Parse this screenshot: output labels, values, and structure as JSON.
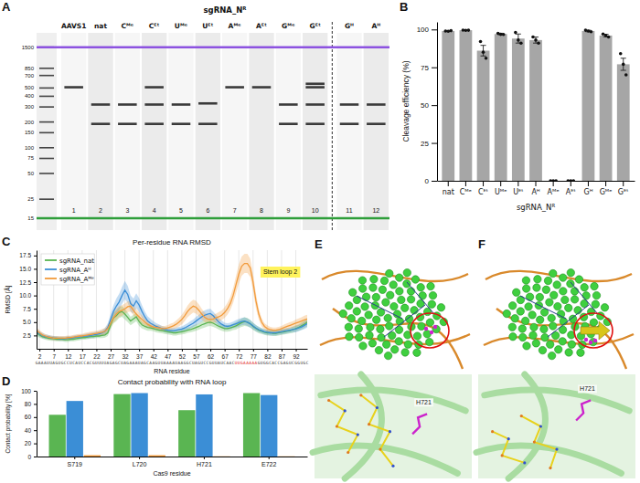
{
  "chart_data": [
    {
      "type": "gel",
      "panel": "A",
      "title": "sgRNA_Nᴿ",
      "log": "y",
      "ylim": [
        12,
        2000
      ],
      "ladder": [
        1500,
        850,
        700,
        500,
        400,
        300,
        200,
        150,
        100,
        75,
        50,
        25,
        15
      ],
      "upper_marker": 1500,
      "lower_marker": 15,
      "lane_groups": [
        [
          "AAVS1",
          "nat",
          "Cᴹᵉ",
          "Cᴱᵗ",
          "Uᴹᵉ",
          "Uᴱᵗ",
          "Aᴹᵉ",
          "Aᴱᵗ",
          "Gᴹᵉ",
          "Gᴱᵗ"
        ],
        [
          "Gᴴ",
          "Aᴴ"
        ]
      ],
      "lane_numbers": [
        1,
        2,
        3,
        4,
        5,
        6,
        7,
        8,
        9,
        10,
        11,
        12
      ],
      "bands": [
        [
          510
        ],
        [
          320,
          190
        ],
        [
          320,
          190
        ],
        [
          510,
          320,
          190
        ],
        [
          320,
          190
        ],
        [
          330,
          190
        ],
        [
          510
        ],
        [
          510
        ],
        [
          320,
          190
        ],
        [
          560,
          510,
          320,
          190
        ],
        [
          320,
          190
        ],
        [
          320,
          190
        ]
      ],
      "color": "#3a3a3a"
    },
    {
      "type": "bar",
      "panel": "B",
      "x_label": "sgRNA_Nᴿ",
      "y_label": "Cleavage efficiency (%)",
      "categories": [
        "nat",
        "Cᴹᵉ",
        "Cᴱᵗ",
        "Uᴹᵉ",
        "Uᴱᵗ",
        "Aᴴ",
        "Aᴹᵉ",
        "Aᴱᵗ",
        "Gᴴ",
        "Gᴹᵉ",
        "Gᴱᵗ"
      ],
      "values": [
        99,
        99.5,
        86,
        97,
        94,
        93,
        0,
        0,
        99,
        96,
        77
      ],
      "errors": [
        0.3,
        0.2,
        3.5,
        0.5,
        3,
        2,
        0,
        0,
        0.5,
        0.8,
        4
      ],
      "points": [
        [
          99,
          98.8,
          99.2
        ],
        [
          99.6,
          99.4,
          99.5
        ],
        [
          92,
          85,
          81
        ],
        [
          97.5,
          96.8,
          96.7
        ],
        [
          98,
          93,
          91
        ],
        [
          95,
          93,
          91
        ],
        [
          0,
          0,
          0
        ],
        [
          0,
          0,
          0
        ],
        [
          99.5,
          99,
          98.5
        ],
        [
          97,
          96,
          95
        ],
        [
          84,
          77,
          70
        ]
      ],
      "color": "#a6a6a6",
      "ylim": [
        0,
        105
      ],
      "yticks": [
        0,
        25,
        50,
        75,
        100
      ]
    },
    {
      "type": "line",
      "panel": "C",
      "title": "Per-residue RNA RMSD",
      "x_label": "RNA residue",
      "y_label": "RMSD [Å]",
      "x": [
        1,
        2,
        3,
        4,
        5,
        6,
        7,
        8,
        9,
        10,
        11,
        12,
        13,
        14,
        15,
        16,
        17,
        18,
        19,
        20,
        21,
        22,
        23,
        24,
        25,
        26,
        27,
        28,
        29,
        30,
        31,
        32,
        33,
        34,
        35,
        36,
        37,
        38,
        39,
        40,
        41,
        42,
        43,
        44,
        45,
        46,
        47,
        48,
        49,
        50,
        51,
        52,
        53,
        54,
        55,
        56,
        57,
        58,
        59,
        60,
        61,
        62,
        63,
        64,
        65,
        66,
        67,
        68,
        69,
        70,
        71,
        72,
        73,
        74,
        75,
        76,
        77,
        78,
        79,
        80,
        81,
        82,
        83,
        84,
        85,
        86,
        87,
        88,
        89,
        90,
        91,
        92,
        93,
        94,
        95,
        96
      ],
      "xlim": [
        1,
        96
      ],
      "xticks": [
        2,
        7,
        12,
        17,
        22,
        27,
        32,
        37,
        42,
        47,
        52,
        57,
        62,
        67,
        72,
        77,
        82,
        87,
        92
      ],
      "ylim": [
        0,
        18.5
      ],
      "yticks": [
        2.5,
        {
          "value": 5,
          "label": "5.0"
        },
        7.5,
        {
          "value": 10,
          "label": "10.0"
        },
        12.5,
        {
          "value": 15,
          "label": "15.0"
        },
        17.5
      ],
      "grid": true,
      "legend": "upper left",
      "annotation": "Stem loop 2",
      "sequence": "GAAAUUAGUGCCUCAUCCACGUUUUAGAGCUAGAAAUAGCAAGUUAAAAUAAGGCUAGUCCGUUAUCAACUUGAAAAAGUGGCACCGAGUCGGUGC",
      "highlight": [
        71,
        78
      ],
      "series": [
        {
          "name": "sgRNA_nat",
          "color": "#5ab552",
          "values": [
            3.0,
            2.6,
            2.3,
            2.1,
            2.0,
            1.9,
            1.9,
            1.8,
            1.8,
            1.8,
            1.7,
            1.7,
            1.8,
            1.8,
            1.9,
            2.0,
            2.1,
            2.1,
            2.2,
            2.3,
            2.3,
            2.4,
            2.4,
            2.5,
            2.6,
            3.0,
            4.5,
            5.8,
            6.2,
            6.8,
            7.0,
            6.5,
            5.9,
            5.2,
            5.6,
            6.0,
            5.1,
            4.5,
            4.2,
            4.0,
            3.9,
            3.8,
            3.6,
            3.5,
            3.4,
            3.3,
            3.2,
            3.1,
            3.0,
            3.0,
            3.1,
            3.2,
            3.3,
            3.5,
            3.6,
            3.8,
            4.0,
            4.2,
            4.5,
            4.7,
            4.9,
            5.0,
            4.8,
            4.5,
            4.2,
            4.0,
            3.8,
            3.8,
            3.9,
            4.1,
            4.3,
            4.6,
            4.9,
            5.1,
            5.0,
            4.7,
            4.2,
            3.8,
            3.5,
            3.3,
            3.1,
            3.0,
            3.0,
            2.9,
            2.9,
            3.0,
            3.1,
            3.2,
            3.3,
            3.4,
            3.6,
            3.8,
            4.0,
            4.3,
            4.6,
            5.0
          ],
          "std": [
            0.6,
            0.5,
            0.4,
            0.4,
            0.4,
            0.4,
            0.4,
            0.4,
            0.4,
            0.4,
            0.4,
            0.4,
            0.4,
            0.4,
            0.4,
            0.4,
            0.4,
            0.4,
            0.4,
            0.4,
            0.4,
            0.4,
            0.4,
            0.5,
            0.5,
            0.6,
            0.8,
            1.0,
            1.0,
            1.0,
            1.0,
            1.0,
            0.9,
            0.8,
            0.8,
            0.8,
            0.8,
            0.7,
            0.6,
            0.6,
            0.5,
            0.5,
            0.5,
            0.5,
            0.5,
            0.5,
            0.5,
            0.5,
            0.5,
            0.5,
            0.5,
            0.5,
            0.5,
            0.5,
            0.5,
            0.6,
            0.6,
            0.6,
            0.7,
            0.7,
            0.7,
            0.7,
            0.7,
            0.6,
            0.6,
            0.6,
            0.6,
            0.6,
            0.6,
            0.6,
            0.7,
            0.7,
            0.8,
            0.8,
            0.8,
            0.7,
            0.7,
            0.6,
            0.6,
            0.5,
            0.5,
            0.5,
            0.5,
            0.5,
            0.5,
            0.5,
            0.5,
            0.5,
            0.5,
            0.5,
            0.6,
            0.6,
            0.6,
            0.7,
            0.7,
            0.8
          ]
        },
        {
          "name": "sgRNA_Aᴴ",
          "color": "#3b8ed6",
          "values": [
            3.2,
            2.8,
            2.5,
            2.3,
            2.2,
            2.1,
            2.0,
            2.0,
            1.9,
            1.9,
            1.9,
            2.0,
            2.0,
            2.1,
            2.2,
            2.2,
            2.3,
            2.4,
            2.4,
            2.5,
            2.6,
            2.7,
            2.8,
            3.0,
            3.3,
            4.0,
            5.5,
            7.0,
            8.0,
            8.8,
            10.0,
            11.0,
            10.2,
            8.5,
            8.0,
            9.0,
            8.2,
            7.0,
            6.0,
            5.2,
            4.8,
            4.5,
            4.2,
            4.0,
            3.8,
            3.6,
            3.5,
            3.4,
            3.4,
            3.5,
            3.6,
            3.7,
            3.9,
            4.2,
            4.5,
            4.8,
            5.2,
            5.6,
            6.0,
            6.3,
            6.5,
            6.6,
            6.2,
            5.6,
            5.0,
            4.6,
            4.3,
            4.2,
            4.3,
            4.5,
            4.7,
            4.9,
            5.1,
            5.2,
            5.0,
            4.7,
            4.3,
            3.9,
            3.6,
            3.4,
            3.2,
            3.1,
            3.0,
            3.0,
            3.0,
            3.1,
            3.2,
            3.3,
            3.4,
            3.5,
            3.6,
            3.7,
            3.9,
            4.1,
            4.4,
            4.7
          ],
          "std": [
            0.6,
            0.5,
            0.5,
            0.4,
            0.4,
            0.4,
            0.4,
            0.4,
            0.4,
            0.4,
            0.4,
            0.4,
            0.4,
            0.4,
            0.4,
            0.4,
            0.4,
            0.4,
            0.5,
            0.5,
            0.5,
            0.5,
            0.5,
            0.5,
            0.6,
            0.8,
            1.0,
            1.2,
            1.4,
            1.5,
            1.6,
            1.7,
            1.6,
            1.5,
            1.4,
            1.4,
            1.3,
            1.2,
            1.0,
            0.9,
            0.8,
            0.7,
            0.6,
            0.6,
            0.5,
            0.5,
            0.5,
            0.5,
            0.5,
            0.5,
            0.5,
            0.5,
            0.6,
            0.6,
            0.7,
            0.7,
            0.8,
            0.8,
            0.9,
            0.9,
            0.9,
            0.9,
            0.8,
            0.8,
            0.7,
            0.7,
            0.6,
            0.6,
            0.6,
            0.6,
            0.7,
            0.7,
            0.7,
            0.7,
            0.7,
            0.7,
            0.6,
            0.6,
            0.5,
            0.5,
            0.5,
            0.5,
            0.5,
            0.5,
            0.5,
            0.5,
            0.5,
            0.5,
            0.5,
            0.5,
            0.5,
            0.6,
            0.6,
            0.6,
            0.7,
            0.7
          ]
        },
        {
          "name": "sgRNA_Aᴹᵉ",
          "color": "#f29b3c",
          "values": [
            3.4,
            3.0,
            2.6,
            2.4,
            2.2,
            2.1,
            2.0,
            2.0,
            2.0,
            2.0,
            2.0,
            2.1,
            2.1,
            2.2,
            2.3,
            2.4,
            2.4,
            2.5,
            2.6,
            2.7,
            2.8,
            2.9,
            3.0,
            3.1,
            3.3,
            3.8,
            4.8,
            5.8,
            6.5,
            7.0,
            7.2,
            7.5,
            7.9,
            8.0,
            7.2,
            6.5,
            6.0,
            5.5,
            5.0,
            4.6,
            4.3,
            4.1,
            4.0,
            3.9,
            3.8,
            3.8,
            3.9,
            4.1,
            4.3,
            4.6,
            5.0,
            5.5,
            6.2,
            7.0,
            7.6,
            8.0,
            7.8,
            7.2,
            6.5,
            5.9,
            5.6,
            5.5,
            5.6,
            5.8,
            6.0,
            6.3,
            6.8,
            7.5,
            8.5,
            10.0,
            12.0,
            14.0,
            15.5,
            16.0,
            16.0,
            15.2,
            12.5,
            9.0,
            6.5,
            5.0,
            4.2,
            3.8,
            3.6,
            3.5,
            3.5,
            3.6,
            3.8,
            4.0,
            4.2,
            4.4,
            4.6,
            4.8,
            5.0,
            5.2,
            5.4,
            5.6
          ],
          "std": [
            0.6,
            0.5,
            0.5,
            0.4,
            0.4,
            0.4,
            0.4,
            0.4,
            0.4,
            0.4,
            0.4,
            0.4,
            0.4,
            0.4,
            0.4,
            0.4,
            0.4,
            0.5,
            0.5,
            0.5,
            0.5,
            0.5,
            0.5,
            0.6,
            0.6,
            0.7,
            0.8,
            0.9,
            1.0,
            1.0,
            1.0,
            1.0,
            1.0,
            1.0,
            0.9,
            0.9,
            0.8,
            0.8,
            0.7,
            0.6,
            0.6,
            0.5,
            0.5,
            0.5,
            0.5,
            0.5,
            0.5,
            0.6,
            0.6,
            0.7,
            0.8,
            0.9,
            1.0,
            1.1,
            1.2,
            1.2,
            1.2,
            1.1,
            1.0,
            0.9,
            0.8,
            0.8,
            0.8,
            0.8,
            0.9,
            0.9,
            1.0,
            1.1,
            1.2,
            1.4,
            1.6,
            1.8,
            1.8,
            1.8,
            1.8,
            1.7,
            1.6,
            1.4,
            1.0,
            0.8,
            0.6,
            0.6,
            0.5,
            0.5,
            0.5,
            0.5,
            0.5,
            0.6,
            0.6,
            0.6,
            0.6,
            0.7,
            0.7,
            0.7,
            0.8,
            0.8
          ]
        }
      ]
    },
    {
      "type": "bar",
      "panel": "D",
      "title": "Contact probability with RNA loop",
      "x_label": "Cas9 residue",
      "y_label": "Contact probability [%]",
      "categories": [
        "S719",
        "L720",
        "H721",
        "E722"
      ],
      "series": [
        {
          "color": "#5ab552",
          "values": [
            63.5,
            95,
            70.5,
            96.5
          ]
        },
        {
          "color": "#3b8ed6",
          "values": [
            84.5,
            96.5,
            94.5,
            93.5
          ]
        },
        {
          "color": "#f29b3c",
          "values": [
            2,
            2,
            0.3,
            0.3
          ]
        }
      ],
      "ylim": [
        0,
        100
      ],
      "yticks": [
        0,
        20,
        40,
        60,
        80,
        100
      ]
    }
  ],
  "structures": [
    {
      "panel": "E",
      "label": "H721"
    },
    {
      "panel": "F",
      "label": "H721"
    }
  ]
}
